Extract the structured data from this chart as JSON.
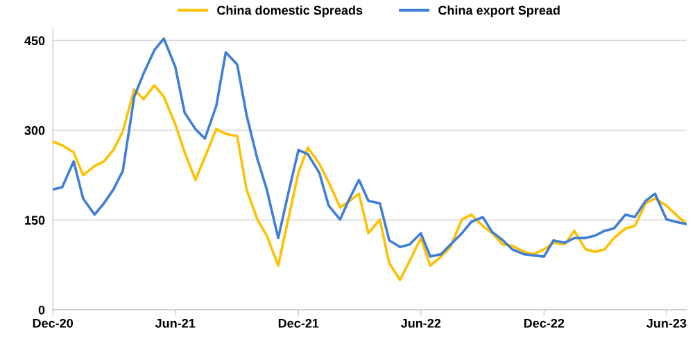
{
  "chart_data": {
    "type": "line",
    "x": [
      "2020-12-01",
      "2020-12-15",
      "2021-01-01",
      "2021-01-15",
      "2021-02-01",
      "2021-02-15",
      "2021-03-01",
      "2021-03-15",
      "2021-04-01",
      "2021-04-15",
      "2021-05-01",
      "2021-05-15",
      "2021-06-01",
      "2021-06-15",
      "2021-07-01",
      "2021-07-15",
      "2021-08-01",
      "2021-08-15",
      "2021-09-01",
      "2021-09-15",
      "2021-10-01",
      "2021-10-15",
      "2021-11-01",
      "2021-11-15",
      "2021-12-01",
      "2021-12-15",
      "2022-01-01",
      "2022-01-15",
      "2022-02-01",
      "2022-02-15",
      "2022-03-01",
      "2022-03-15",
      "2022-04-01",
      "2022-04-15",
      "2022-05-01",
      "2022-05-15",
      "2022-06-01",
      "2022-06-15",
      "2022-07-01",
      "2022-07-15",
      "2022-08-01",
      "2022-08-15",
      "2022-09-01",
      "2022-09-15",
      "2022-10-01",
      "2022-10-15",
      "2022-11-01",
      "2022-11-15",
      "2022-12-01",
      "2022-12-15",
      "2023-01-01",
      "2023-01-15",
      "2023-02-01",
      "2023-02-15",
      "2023-03-01",
      "2023-03-15",
      "2023-04-01",
      "2023-04-15",
      "2023-05-01",
      "2023-05-15",
      "2023-06-01",
      "2023-06-15",
      "2023-07-01"
    ],
    "series": [
      {
        "name": "China domestic Spreads",
        "color": "#ffc000",
        "values": [
          281,
          275,
          263,
          225,
          240,
          248,
          267,
          298,
          368,
          352,
          375,
          356,
          310,
          263,
          217,
          255,
          302,
          294,
          290,
          201,
          151,
          124,
          74,
          147,
          229,
          271,
          244,
          213,
          171,
          182,
          194,
          128,
          151,
          78,
          50,
          81,
          120,
          74,
          89,
          105,
          151,
          159,
          140,
          128,
          109,
          107,
          97,
          93,
          101,
          112,
          110,
          132,
          101,
          97,
          101,
          120,
          136,
          140,
          178,
          186,
          174,
          159,
          143
        ]
      },
      {
        "name": "China export Spread",
        "color": "#3f7fd8",
        "values": [
          201,
          205,
          248,
          186,
          159,
          178,
          201,
          232,
          356,
          395,
          434,
          453,
          406,
          329,
          302,
          286,
          341,
          430,
          410,
          325,
          252,
          201,
          120,
          190,
          267,
          260,
          229,
          174,
          151,
          186,
          217,
          182,
          178,
          116,
          105,
          109,
          128,
          89,
          93,
          109,
          128,
          147,
          155,
          130,
          116,
          101,
          93,
          91,
          89,
          116,
          112,
          120,
          120,
          124,
          132,
          136,
          159,
          155,
          182,
          194,
          151,
          147,
          143
        ]
      }
    ],
    "xlim": [
      "2020-12-01",
      "2023-07-01"
    ],
    "xticks": [
      {
        "value": "2020-12-01",
        "label": "Dec-20"
      },
      {
        "value": "2021-06-01",
        "label": "Jun-21"
      },
      {
        "value": "2021-12-01",
        "label": "Dec-21"
      },
      {
        "value": "2022-06-01",
        "label": "Jun-22"
      },
      {
        "value": "2022-12-01",
        "label": "Dec-22"
      },
      {
        "value": "2023-06-01",
        "label": "Jun-23"
      }
    ],
    "ylim": [
      0,
      470
    ],
    "yticks": [
      0,
      150,
      300,
      450
    ],
    "grid": "y",
    "legend": "top",
    "marker": "none",
    "line_style": "solid"
  }
}
